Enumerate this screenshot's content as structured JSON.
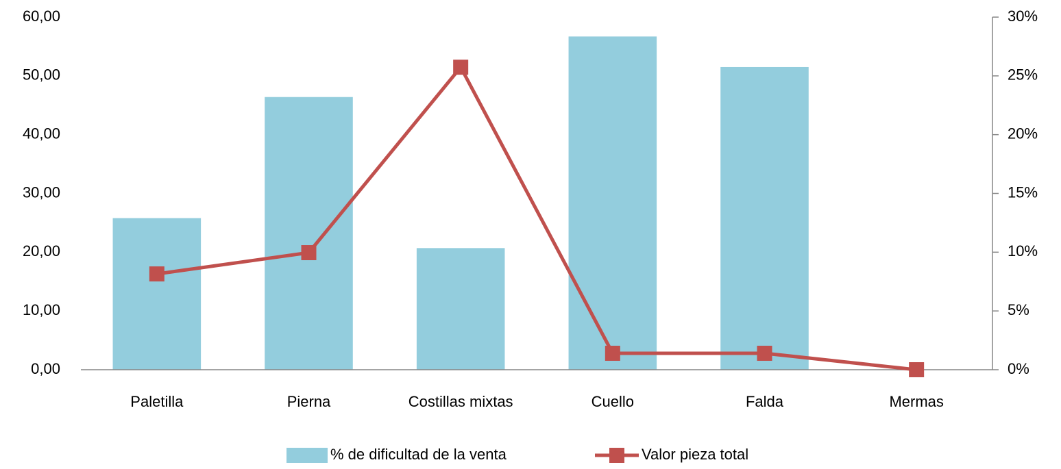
{
  "chart_data": {
    "type": "bar",
    "categories": [
      "Paletilla",
      "Pierna",
      "Costillas mixtas",
      "Cuello",
      "Falda",
      "Mermas"
    ],
    "series": [
      {
        "name": "% de dificultad de la venta",
        "type": "bar",
        "color": "#93cddd",
        "values": [
          25.8,
          46.4,
          20.7,
          56.7,
          51.5,
          0
        ]
      },
      {
        "name": "Valor pieza total",
        "type": "line",
        "axis": "y2",
        "color": "#c0504d",
        "values": [
          8.15,
          9.96,
          25.74,
          1.4,
          1.4,
          0
        ]
      }
    ],
    "ylim": [
      0,
      60
    ],
    "yticks": [
      {
        "value": 0,
        "label": "0,00"
      },
      {
        "value": 10,
        "label": "10,00"
      },
      {
        "value": 20,
        "label": "20,00"
      },
      {
        "value": 30,
        "label": "30,00"
      },
      {
        "value": 40,
        "label": "40,00"
      },
      {
        "value": 50,
        "label": "50,00"
      },
      {
        "value": 60,
        "label": "60,00"
      }
    ],
    "y2lim": [
      0,
      30
    ],
    "y2ticks": [
      {
        "value": 0,
        "label": "0%"
      },
      {
        "value": 5,
        "label": "5%"
      },
      {
        "value": 10,
        "label": "10%"
      },
      {
        "value": 15,
        "label": "15%"
      },
      {
        "value": 20,
        "label": "20%"
      },
      {
        "value": 25,
        "label": "25%"
      },
      {
        "value": 30,
        "label": "30%"
      }
    ],
    "grid": false,
    "legend": "bottom"
  }
}
